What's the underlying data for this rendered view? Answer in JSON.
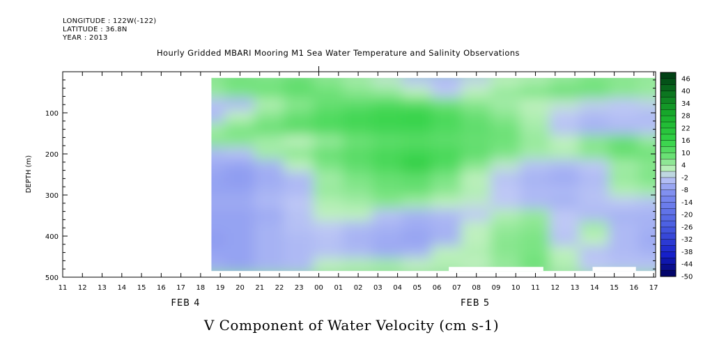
{
  "header": {
    "longitude": "LONGITUDE : 122W(-122)",
    "latitude": "LATITUDE : 36.8N",
    "year": "YEAR : 2013"
  },
  "chart_data": {
    "type": "heatmap",
    "title": "Hourly Gridded MBARI Mooring M1 Sea Water Temperature and Salinity Observations",
    "subtitle": "V Component of Water Velocity (cm s-1)",
    "ylabel": "DEPTH (m)",
    "xlabel": "",
    "xlim": [
      11,
      41.1
    ],
    "ylim": [
      500,
      0
    ],
    "y_reversed": true,
    "x_ticks": [
      {
        "value": 11,
        "label": "11"
      },
      {
        "value": 12,
        "label": "12"
      },
      {
        "value": 13,
        "label": "13"
      },
      {
        "value": 14,
        "label": "14"
      },
      {
        "value": 15,
        "label": "15"
      },
      {
        "value": 16,
        "label": "16"
      },
      {
        "value": 17,
        "label": "17"
      },
      {
        "value": 18,
        "label": "18"
      },
      {
        "value": 19,
        "label": "19"
      },
      {
        "value": 20,
        "label": "20"
      },
      {
        "value": 21,
        "label": "21"
      },
      {
        "value": 22,
        "label": "22"
      },
      {
        "value": 23,
        "label": "23"
      },
      {
        "value": 24,
        "label": "00"
      },
      {
        "value": 25,
        "label": "01"
      },
      {
        "value": 26,
        "label": "02"
      },
      {
        "value": 27,
        "label": "03"
      },
      {
        "value": 28,
        "label": "04"
      },
      {
        "value": 29,
        "label": "05"
      },
      {
        "value": 30,
        "label": "06"
      },
      {
        "value": 31,
        "label": "07"
      },
      {
        "value": 32,
        "label": "08"
      },
      {
        "value": 33,
        "label": "09"
      },
      {
        "value": 34,
        "label": "10"
      },
      {
        "value": 35,
        "label": "11"
      },
      {
        "value": 36,
        "label": "12"
      },
      {
        "value": 37,
        "label": "13"
      },
      {
        "value": 38,
        "label": "14"
      },
      {
        "value": 39,
        "label": "15"
      },
      {
        "value": 40,
        "label": "16"
      },
      {
        "value": 41,
        "label": "17"
      }
    ],
    "date_labels": [
      {
        "value": 16.5,
        "label": "FEB  4"
      },
      {
        "value": 31.2,
        "label": "FEB  5"
      }
    ],
    "y_ticks": [
      100,
      200,
      300,
      400,
      500
    ],
    "data_extent": {
      "x_start": 18.55,
      "x_end": 41.1,
      "depth_top": 15,
      "depth_bottom": 485
    },
    "colorbar": {
      "levels": [
        48,
        46,
        43,
        40,
        37,
        34,
        31,
        28,
        25,
        22,
        19,
        16,
        13,
        10,
        7,
        4,
        1,
        -2,
        -5,
        -8,
        -11,
        -14,
        -17,
        -20,
        -23,
        -26,
        -29,
        -32,
        -35,
        -38,
        -41,
        -44,
        -47,
        -50
      ],
      "labels": [
        46,
        40,
        34,
        28,
        22,
        16,
        10,
        4,
        -2,
        -8,
        -14,
        -20,
        -26,
        -32,
        -38,
        -44,
        -50
      ]
    },
    "field": {
      "x": [
        18.5,
        20,
        21.5,
        23,
        24.5,
        26,
        27.5,
        29,
        30.5,
        32,
        33.5,
        35,
        36.5,
        38,
        39.5,
        41
      ],
      "depth": [
        20,
        50,
        80,
        110,
        140,
        170,
        200,
        230,
        260,
        290,
        320,
        350,
        380,
        410,
        440,
        470
      ],
      "values": [
        [
          6,
          8,
          7,
          9,
          6,
          4,
          1,
          -3,
          -4,
          -1,
          2,
          3,
          5,
          7,
          6,
          5
        ],
        [
          5,
          7,
          8,
          10,
          8,
          6,
          5,
          2,
          -2,
          2,
          5,
          7,
          9,
          8,
          6,
          5
        ],
        [
          -3,
          -4,
          3,
          6,
          9,
          10,
          12,
          11,
          8,
          6,
          4,
          2,
          1,
          -1,
          -2,
          -1
        ],
        [
          -4,
          2,
          6,
          9,
          12,
          14,
          15,
          16,
          13,
          9,
          6,
          3,
          -2,
          -4,
          -3,
          -4
        ],
        [
          4,
          7,
          9,
          11,
          12,
          13,
          14,
          14,
          12,
          10,
          8,
          4,
          -3,
          -5,
          -4,
          -3
        ],
        [
          6,
          6,
          4,
          2,
          5,
          8,
          10,
          11,
          10,
          9,
          8,
          5,
          2,
          6,
          9,
          5
        ],
        [
          -4,
          -3,
          4,
          6,
          9,
          11,
          13,
          14,
          13,
          10,
          7,
          4,
          3,
          6,
          9,
          8
        ],
        [
          -6,
          -7,
          -5,
          2,
          7,
          10,
          13,
          17,
          12,
          6,
          1,
          -3,
          -4,
          -2,
          4,
          6
        ],
        [
          -7,
          -8,
          -6,
          -4,
          4,
          7,
          9,
          10,
          7,
          2,
          -3,
          -5,
          -6,
          -4,
          5,
          7
        ],
        [
          -7,
          -7,
          -5,
          -4,
          5,
          6,
          8,
          9,
          6,
          3,
          -2,
          -4,
          -4,
          -3,
          3,
          4
        ],
        [
          -6,
          -6,
          -4,
          -2,
          3,
          4,
          6,
          4,
          2,
          1,
          -2,
          -4,
          -5,
          -3,
          -2,
          -3
        ],
        [
          -7,
          -7,
          -6,
          -3,
          2,
          2,
          -3,
          -5,
          -4,
          -2,
          3,
          5,
          -2,
          -4,
          -5,
          -5
        ],
        [
          -7,
          -7,
          -5,
          -3,
          -2,
          -4,
          -5,
          -6,
          -5,
          2,
          5,
          6,
          -2,
          4,
          -4,
          -5
        ],
        [
          -8,
          -7,
          -5,
          -4,
          -3,
          -5,
          -6,
          -7,
          -5,
          2,
          6,
          7,
          -3,
          2,
          -4,
          -6
        ],
        [
          -7,
          -7,
          -5,
          -4,
          -3,
          -4,
          -6,
          -5,
          2,
          3,
          6,
          7,
          2,
          -3,
          -4,
          -5
        ],
        [
          -6,
          -7,
          -5,
          -4,
          2,
          3,
          4,
          2,
          3,
          2,
          5,
          8,
          3,
          -2,
          -3,
          -3
        ]
      ]
    },
    "missing_segments": [
      {
        "x0": 30.6,
        "x1": 35.4,
        "depth0": 475,
        "depth1": 485
      },
      {
        "x0": 37.9,
        "x1": 40.1,
        "depth0": 475,
        "depth1": 485
      }
    ]
  }
}
